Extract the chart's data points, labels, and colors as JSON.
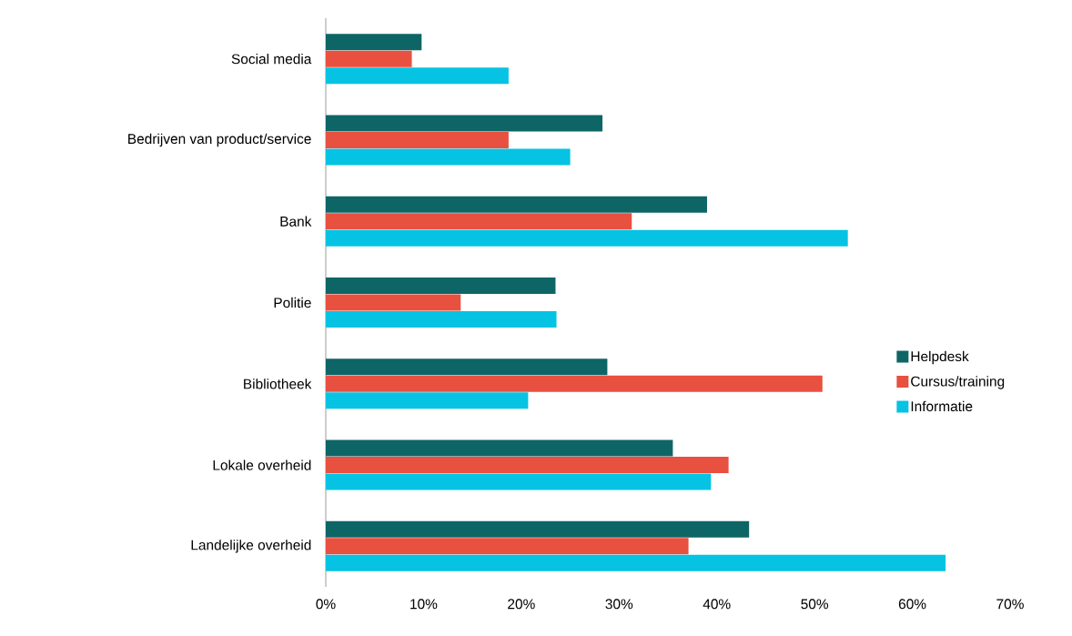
{
  "chart_data": {
    "type": "bar",
    "orientation": "horizontal",
    "categories": [
      "Social media",
      "Bedrijven van product/service",
      "Bank",
      "Politie",
      "Bibliotheek",
      "Lokale overheid",
      "Landelijke overheid"
    ],
    "series": [
      {
        "name": "Helpdesk",
        "color": "#0e6566",
        "values": [
          9.8,
          28.3,
          39.0,
          23.5,
          28.8,
          35.5,
          43.3
        ]
      },
      {
        "name": "Cursus/training",
        "color": "#e85040",
        "values": [
          8.8,
          18.7,
          31.3,
          13.8,
          50.8,
          41.2,
          37.1
        ]
      },
      {
        "name": "Informatie",
        "color": "#06c3e3",
        "values": [
          18.7,
          25.0,
          53.4,
          23.6,
          20.7,
          39.4,
          63.4
        ]
      }
    ],
    "xlim": [
      0,
      70
    ],
    "xticks": [
      {
        "value": 0,
        "label": "0%"
      },
      {
        "value": 10,
        "label": "10%"
      },
      {
        "value": 20,
        "label": "20%"
      },
      {
        "value": 30,
        "label": "30%"
      },
      {
        "value": 40,
        "label": "40%"
      },
      {
        "value": 50,
        "label": "50%"
      },
      {
        "value": 60,
        "label": "60%"
      },
      {
        "value": 70,
        "label": "70%"
      }
    ],
    "grid": false,
    "legend": "right"
  }
}
